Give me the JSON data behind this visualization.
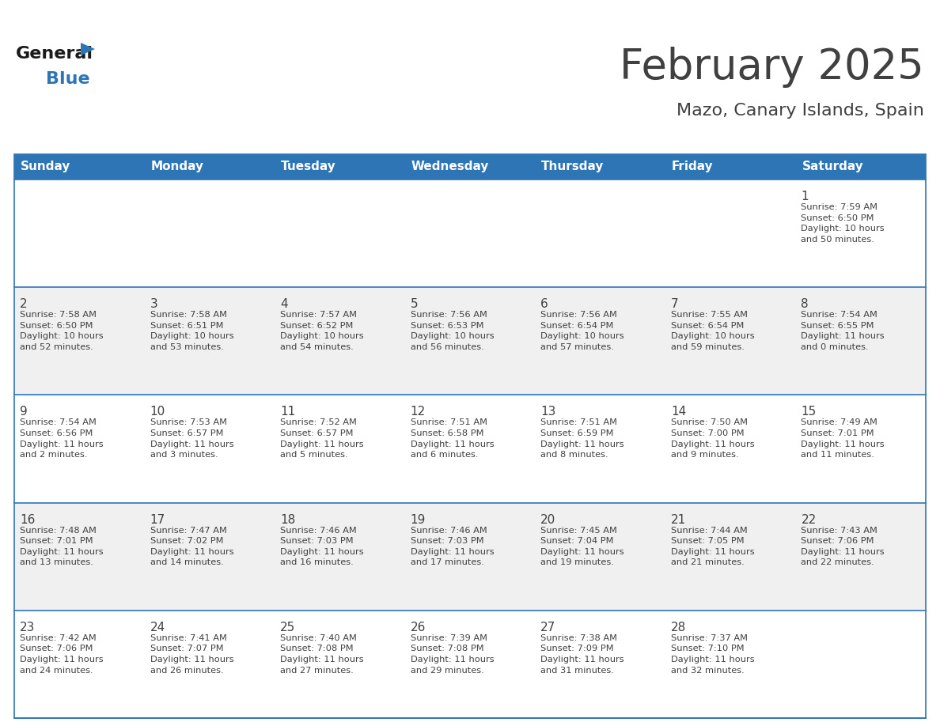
{
  "title": "February 2025",
  "subtitle": "Mazo, Canary Islands, Spain",
  "header_bg": "#2E75B6",
  "header_text_color": "#FFFFFF",
  "cell_bg_white": "#FFFFFF",
  "cell_bg_light": "#F0F0F0",
  "border_color": "#2E75B6",
  "text_color": "#404040",
  "logo_general_color": "#1a1a1a",
  "logo_blue_color": "#2E75B6",
  "logo_triangle_color": "#2E75B6",
  "days_of_week": [
    "Sunday",
    "Monday",
    "Tuesday",
    "Wednesday",
    "Thursday",
    "Friday",
    "Saturday"
  ],
  "calendar_data": [
    [
      {
        "day": "",
        "info": ""
      },
      {
        "day": "",
        "info": ""
      },
      {
        "day": "",
        "info": ""
      },
      {
        "day": "",
        "info": ""
      },
      {
        "day": "",
        "info": ""
      },
      {
        "day": "",
        "info": ""
      },
      {
        "day": "1",
        "info": "Sunrise: 7:59 AM\nSunset: 6:50 PM\nDaylight: 10 hours\nand 50 minutes."
      }
    ],
    [
      {
        "day": "2",
        "info": "Sunrise: 7:58 AM\nSunset: 6:50 PM\nDaylight: 10 hours\nand 52 minutes."
      },
      {
        "day": "3",
        "info": "Sunrise: 7:58 AM\nSunset: 6:51 PM\nDaylight: 10 hours\nand 53 minutes."
      },
      {
        "day": "4",
        "info": "Sunrise: 7:57 AM\nSunset: 6:52 PM\nDaylight: 10 hours\nand 54 minutes."
      },
      {
        "day": "5",
        "info": "Sunrise: 7:56 AM\nSunset: 6:53 PM\nDaylight: 10 hours\nand 56 minutes."
      },
      {
        "day": "6",
        "info": "Sunrise: 7:56 AM\nSunset: 6:54 PM\nDaylight: 10 hours\nand 57 minutes."
      },
      {
        "day": "7",
        "info": "Sunrise: 7:55 AM\nSunset: 6:54 PM\nDaylight: 10 hours\nand 59 minutes."
      },
      {
        "day": "8",
        "info": "Sunrise: 7:54 AM\nSunset: 6:55 PM\nDaylight: 11 hours\nand 0 minutes."
      }
    ],
    [
      {
        "day": "9",
        "info": "Sunrise: 7:54 AM\nSunset: 6:56 PM\nDaylight: 11 hours\nand 2 minutes."
      },
      {
        "day": "10",
        "info": "Sunrise: 7:53 AM\nSunset: 6:57 PM\nDaylight: 11 hours\nand 3 minutes."
      },
      {
        "day": "11",
        "info": "Sunrise: 7:52 AM\nSunset: 6:57 PM\nDaylight: 11 hours\nand 5 minutes."
      },
      {
        "day": "12",
        "info": "Sunrise: 7:51 AM\nSunset: 6:58 PM\nDaylight: 11 hours\nand 6 minutes."
      },
      {
        "day": "13",
        "info": "Sunrise: 7:51 AM\nSunset: 6:59 PM\nDaylight: 11 hours\nand 8 minutes."
      },
      {
        "day": "14",
        "info": "Sunrise: 7:50 AM\nSunset: 7:00 PM\nDaylight: 11 hours\nand 9 minutes."
      },
      {
        "day": "15",
        "info": "Sunrise: 7:49 AM\nSunset: 7:01 PM\nDaylight: 11 hours\nand 11 minutes."
      }
    ],
    [
      {
        "day": "16",
        "info": "Sunrise: 7:48 AM\nSunset: 7:01 PM\nDaylight: 11 hours\nand 13 minutes."
      },
      {
        "day": "17",
        "info": "Sunrise: 7:47 AM\nSunset: 7:02 PM\nDaylight: 11 hours\nand 14 minutes."
      },
      {
        "day": "18",
        "info": "Sunrise: 7:46 AM\nSunset: 7:03 PM\nDaylight: 11 hours\nand 16 minutes."
      },
      {
        "day": "19",
        "info": "Sunrise: 7:46 AM\nSunset: 7:03 PM\nDaylight: 11 hours\nand 17 minutes."
      },
      {
        "day": "20",
        "info": "Sunrise: 7:45 AM\nSunset: 7:04 PM\nDaylight: 11 hours\nand 19 minutes."
      },
      {
        "day": "21",
        "info": "Sunrise: 7:44 AM\nSunset: 7:05 PM\nDaylight: 11 hours\nand 21 minutes."
      },
      {
        "day": "22",
        "info": "Sunrise: 7:43 AM\nSunset: 7:06 PM\nDaylight: 11 hours\nand 22 minutes."
      }
    ],
    [
      {
        "day": "23",
        "info": "Sunrise: 7:42 AM\nSunset: 7:06 PM\nDaylight: 11 hours\nand 24 minutes."
      },
      {
        "day": "24",
        "info": "Sunrise: 7:41 AM\nSunset: 7:07 PM\nDaylight: 11 hours\nand 26 minutes."
      },
      {
        "day": "25",
        "info": "Sunrise: 7:40 AM\nSunset: 7:08 PM\nDaylight: 11 hours\nand 27 minutes."
      },
      {
        "day": "26",
        "info": "Sunrise: 7:39 AM\nSunset: 7:08 PM\nDaylight: 11 hours\nand 29 minutes."
      },
      {
        "day": "27",
        "info": "Sunrise: 7:38 AM\nSunset: 7:09 PM\nDaylight: 11 hours\nand 31 minutes."
      },
      {
        "day": "28",
        "info": "Sunrise: 7:37 AM\nSunset: 7:10 PM\nDaylight: 11 hours\nand 32 minutes."
      },
      {
        "day": "",
        "info": ""
      }
    ]
  ]
}
